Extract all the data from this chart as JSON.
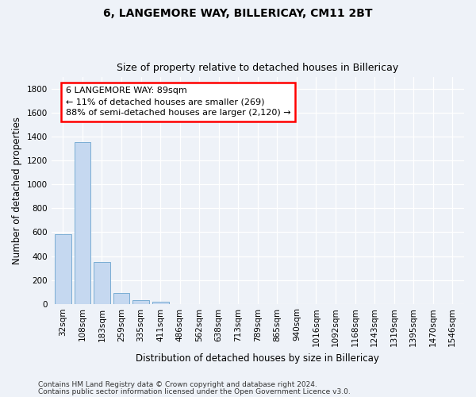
{
  "title1": "6, LANGEMORE WAY, BILLERICAY, CM11 2BT",
  "title2": "Size of property relative to detached houses in Billericay",
  "xlabel": "Distribution of detached houses by size in Billericay",
  "ylabel": "Number of detached properties",
  "categories": [
    "32sqm",
    "108sqm",
    "183sqm",
    "259sqm",
    "335sqm",
    "411sqm",
    "486sqm",
    "562sqm",
    "638sqm",
    "713sqm",
    "789sqm",
    "865sqm",
    "940sqm",
    "1016sqm",
    "1092sqm",
    "1168sqm",
    "1243sqm",
    "1319sqm",
    "1395sqm",
    "1470sqm",
    "1546sqm"
  ],
  "values": [
    580,
    1355,
    350,
    90,
    30,
    20,
    0,
    0,
    0,
    0,
    0,
    0,
    0,
    0,
    0,
    0,
    0,
    0,
    0,
    0,
    0
  ],
  "bar_color": "#c5d8f0",
  "bar_edge_color": "#7aadd4",
  "ylim": [
    0,
    1900
  ],
  "yticks": [
    0,
    200,
    400,
    600,
    800,
    1000,
    1200,
    1400,
    1600,
    1800
  ],
  "annotation_text_line1": "6 LANGEMORE WAY: 89sqm",
  "annotation_text_line2": "← 11% of detached houses are smaller (269)",
  "annotation_text_line3": "88% of semi-detached houses are larger (2,120) →",
  "footer1": "Contains HM Land Registry data © Crown copyright and database right 2024.",
  "footer2": "Contains public sector information licensed under the Open Government Licence v3.0.",
  "background_color": "#eef2f8",
  "grid_color": "#ffffff",
  "title_fontsize": 10,
  "subtitle_fontsize": 9,
  "axis_label_fontsize": 8.5,
  "tick_fontsize": 7.5,
  "annotation_fontsize": 8,
  "footer_fontsize": 6.5
}
